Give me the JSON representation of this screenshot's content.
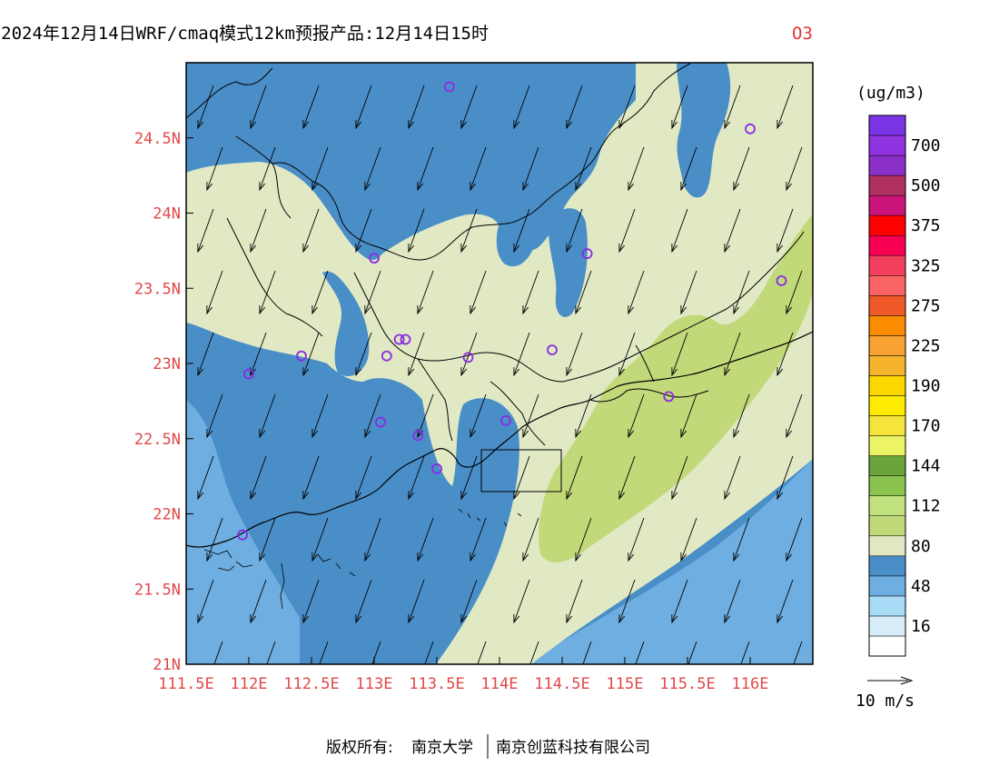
{
  "header": {
    "title": "2024年12月14日WRF/cmaq模式12km预报产品:12月14日15时",
    "pollutant": "O3"
  },
  "map": {
    "lon_range": [
      111.5,
      116.5
    ],
    "lat_range": [
      21.0,
      25.0
    ],
    "lon_ticks": [
      111.5,
      112,
      112.5,
      113,
      113.5,
      114,
      114.5,
      115,
      115.5,
      116
    ],
    "lon_tick_labels": [
      "111.5E",
      "112E",
      "112.5E",
      "113E",
      "113.5E",
      "114E",
      "114.5E",
      "115E",
      "115.5E",
      "116E"
    ],
    "lat_ticks": [
      21,
      21.5,
      22,
      22.5,
      23,
      23.5,
      24,
      24.5
    ],
    "lat_tick_labels": [
      "21N",
      "21.5N",
      "22N",
      "22.5N",
      "23N",
      "23.5N",
      "24N",
      "24.5N"
    ],
    "stations": [
      [
        113.6,
        24.84
      ],
      [
        116.0,
        24.56
      ],
      [
        113.0,
        23.7
      ],
      [
        114.7,
        23.73
      ],
      [
        116.25,
        23.55
      ],
      [
        113.2,
        23.16
      ],
      [
        113.1,
        23.05
      ],
      [
        113.25,
        23.16
      ],
      [
        112.42,
        23.05
      ],
      [
        112.0,
        22.93
      ],
      [
        113.75,
        23.04
      ],
      [
        114.42,
        23.09
      ],
      [
        115.35,
        22.78
      ],
      [
        114.05,
        22.62
      ],
      [
        113.05,
        22.61
      ],
      [
        113.35,
        22.52
      ],
      [
        113.5,
        22.3
      ],
      [
        111.95,
        21.86
      ]
    ],
    "wind": {
      "description": "northeasterly wind vectors",
      "dir_deg": 200,
      "reference_label": "10 m/s"
    }
  },
  "legend": {
    "unit": "(ug/m3)",
    "bins": [
      {
        "color": "#ffffff",
        "label": ""
      },
      {
        "color": "#d7eef9",
        "label": "16"
      },
      {
        "color": "#a8dbf5",
        "label": ""
      },
      {
        "color": "#6eaee0",
        "label": "48"
      },
      {
        "color": "#4a8ec8",
        "label": ""
      },
      {
        "color": "#e0e9c4",
        "label": "80"
      },
      {
        "color": "#c2d97a",
        "label": ""
      },
      {
        "color": "#c0e17e",
        "label": "112"
      },
      {
        "color": "#8ac44e",
        "label": ""
      },
      {
        "color": "#6ba43a",
        "label": "144"
      },
      {
        "color": "#ecf465",
        "label": ""
      },
      {
        "color": "#f6e53d",
        "label": "170"
      },
      {
        "color": "#ffec00",
        "label": ""
      },
      {
        "color": "#fcd700",
        "label": "190"
      },
      {
        "color": "#f6b32d",
        "label": ""
      },
      {
        "color": "#f7a233",
        "label": "225"
      },
      {
        "color": "#fb8c00",
        "label": ""
      },
      {
        "color": "#ef5a28",
        "label": "275"
      },
      {
        "color": "#fa6465",
        "label": ""
      },
      {
        "color": "#f23f5d",
        "label": "325"
      },
      {
        "color": "#f80052",
        "label": ""
      },
      {
        "color": "#ff0000",
        "label": "375"
      },
      {
        "color": "#ca137b",
        "label": ""
      },
      {
        "color": "#b03060",
        "label": "500"
      },
      {
        "color": "#8b2fc9",
        "label": ""
      },
      {
        "color": "#8f34e0",
        "label": "700"
      },
      {
        "color": "#7a34e6",
        "label": ""
      }
    ]
  },
  "footer": {
    "copyright_prefix": "版权所有:",
    "org1": "南京大学",
    "org2": "南京创蓝科技有限公司"
  }
}
